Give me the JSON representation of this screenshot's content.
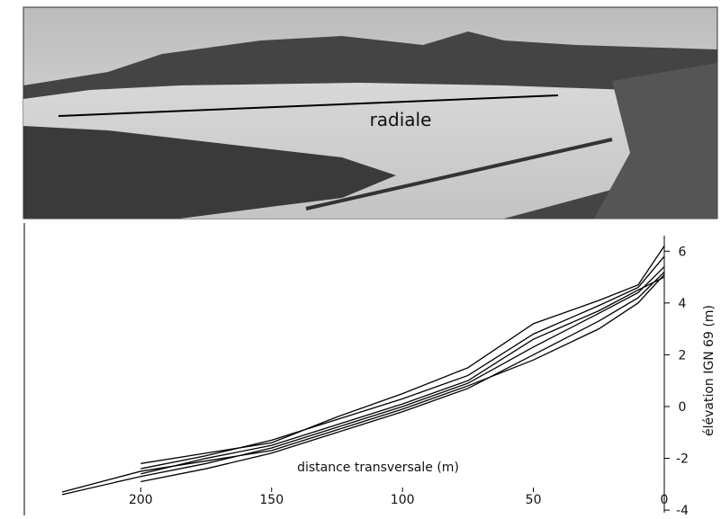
{
  "photo": {
    "label": "radiale"
  },
  "chart_data": {
    "type": "line",
    "xlabel": "distance transversale (m)",
    "ylabel": "élévation IGN 69 (m)",
    "x": [
      230,
      200,
      175,
      150,
      125,
      100,
      75,
      50,
      25,
      10,
      0
    ],
    "series": [
      {
        "color": "#000000",
        "values": [
          -3.4,
          -2.7,
          -2.2,
          -1.6,
          -0.8,
          0.0,
          0.9,
          2.3,
          3.6,
          4.4,
          5.4
        ]
      },
      {
        "color": "#000000",
        "values": [
          null,
          -2.4,
          -1.9,
          -1.3,
          -0.5,
          0.3,
          1.2,
          2.8,
          3.9,
          4.6,
          5.8
        ]
      },
      {
        "color": "#000000",
        "values": [
          null,
          -2.9,
          -2.4,
          -1.8,
          -1.0,
          -0.2,
          0.7,
          2.0,
          3.3,
          4.2,
          5.2
        ]
      },
      {
        "color": "#000000",
        "values": [
          null,
          -2.2,
          -1.8,
          -1.4,
          -0.4,
          0.5,
          1.5,
          3.2,
          4.1,
          4.7,
          6.2
        ]
      },
      {
        "color": "#000000",
        "values": [
          null,
          -2.6,
          -2.0,
          -1.5,
          -0.7,
          0.1,
          1.0,
          2.6,
          3.7,
          4.5,
          5.0
        ]
      },
      {
        "color": "#000000",
        "values": [
          -3.3,
          -2.5,
          -2.1,
          -1.7,
          -0.9,
          -0.1,
          0.8,
          1.8,
          3.0,
          4.0,
          5.1
        ]
      }
    ],
    "xlim": [
      240,
      0
    ],
    "xticks": [
      200,
      150,
      100,
      50,
      0
    ],
    "ylim": [
      -4.1,
      6.6
    ],
    "yticks": [
      -4,
      -2,
      0,
      2,
      4,
      6
    ]
  }
}
